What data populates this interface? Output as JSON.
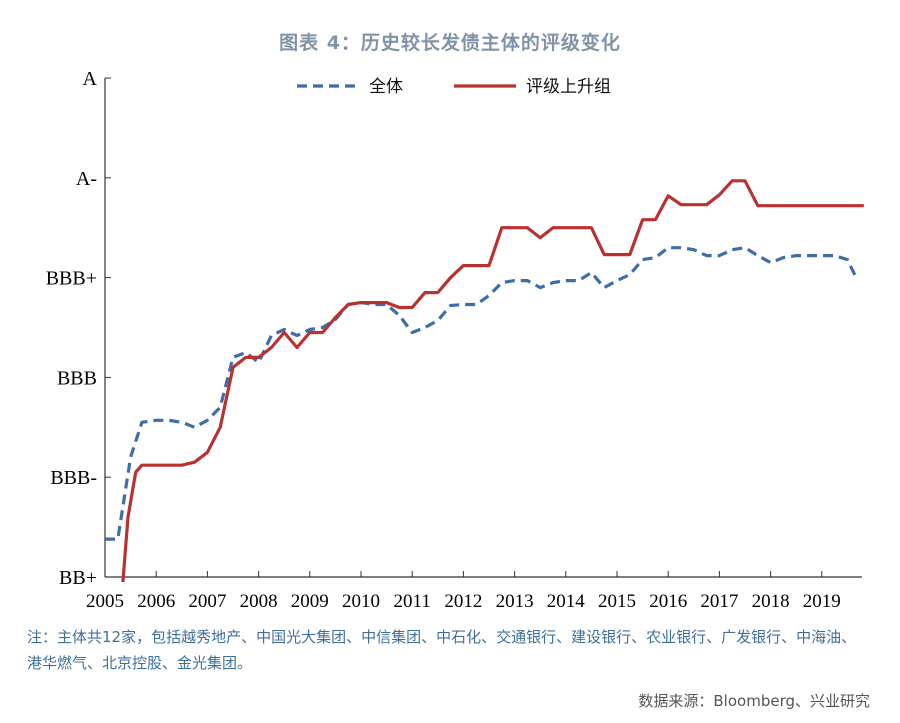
{
  "header": {
    "title": "图表 4：历史较长发债主体的评级变化"
  },
  "note": "注：主体共12家，包括越秀地产、中国光大集团、中信集团、中石化、交通银行、建设银行、农业银行、广发银行、中海油、港华燃气、北京控股、金光集团。",
  "source": "数据来源：Bloomberg、兴业研究",
  "chart_data": {
    "type": "line",
    "x_range": [
      2005,
      2019.82
    ],
    "x_ticks": [
      "2005",
      "2006",
      "2007",
      "2008",
      "2009",
      "2010",
      "2011",
      "2012",
      "2013",
      "2014",
      "2015",
      "2016",
      "2017",
      "2018",
      "2019"
    ],
    "y_ticks": [
      "BB+",
      "BBB-",
      "BBB",
      "BBB+",
      "A-",
      "A"
    ],
    "y_range": [
      0,
      5
    ],
    "legend_position": "top-center",
    "series": [
      {
        "name": "全体",
        "color": "#3d6eaa",
        "dash": "dashed",
        "points": [
          [
            2005.0,
            0.38
          ],
          [
            2005.25,
            0.38
          ],
          [
            2005.5,
            1.2
          ],
          [
            2005.72,
            1.55
          ],
          [
            2006.0,
            1.57
          ],
          [
            2006.25,
            1.57
          ],
          [
            2006.5,
            1.55
          ],
          [
            2006.75,
            1.5
          ],
          [
            2007.0,
            1.57
          ],
          [
            2007.25,
            1.7
          ],
          [
            2007.5,
            2.2
          ],
          [
            2007.75,
            2.25
          ],
          [
            2008.0,
            2.15
          ],
          [
            2008.25,
            2.42
          ],
          [
            2008.5,
            2.48
          ],
          [
            2008.75,
            2.42
          ],
          [
            2009.0,
            2.48
          ],
          [
            2009.25,
            2.5
          ],
          [
            2009.5,
            2.58
          ],
          [
            2009.75,
            2.73
          ],
          [
            2010.0,
            2.75
          ],
          [
            2010.25,
            2.73
          ],
          [
            2010.5,
            2.73
          ],
          [
            2010.75,
            2.62
          ],
          [
            2011.0,
            2.45
          ],
          [
            2011.25,
            2.5
          ],
          [
            2011.5,
            2.57
          ],
          [
            2011.75,
            2.72
          ],
          [
            2012.0,
            2.73
          ],
          [
            2012.25,
            2.73
          ],
          [
            2012.5,
            2.82
          ],
          [
            2012.75,
            2.95
          ],
          [
            2013.0,
            2.97
          ],
          [
            2013.25,
            2.97
          ],
          [
            2013.5,
            2.9
          ],
          [
            2013.75,
            2.95
          ],
          [
            2014.0,
            2.97
          ],
          [
            2014.25,
            2.97
          ],
          [
            2014.5,
            3.05
          ],
          [
            2014.75,
            2.9
          ],
          [
            2015.0,
            2.97
          ],
          [
            2015.25,
            3.03
          ],
          [
            2015.5,
            3.18
          ],
          [
            2015.75,
            3.2
          ],
          [
            2016.0,
            3.3
          ],
          [
            2016.25,
            3.3
          ],
          [
            2016.5,
            3.28
          ],
          [
            2016.75,
            3.22
          ],
          [
            2017.0,
            3.22
          ],
          [
            2017.25,
            3.28
          ],
          [
            2017.5,
            3.3
          ],
          [
            2017.75,
            3.22
          ],
          [
            2018.0,
            3.15
          ],
          [
            2018.25,
            3.2
          ],
          [
            2018.5,
            3.22
          ],
          [
            2018.75,
            3.22
          ],
          [
            2019.0,
            3.22
          ],
          [
            2019.25,
            3.22
          ],
          [
            2019.5,
            3.18
          ],
          [
            2019.65,
            3.02
          ]
        ]
      },
      {
        "name": "评级上升组",
        "color": "#b83232",
        "dash": "solid",
        "points": [
          [
            2005.35,
            -0.05
          ],
          [
            2005.45,
            0.6
          ],
          [
            2005.6,
            1.05
          ],
          [
            2005.72,
            1.12
          ],
          [
            2006.0,
            1.12
          ],
          [
            2006.25,
            1.12
          ],
          [
            2006.5,
            1.12
          ],
          [
            2006.75,
            1.15
          ],
          [
            2007.0,
            1.25
          ],
          [
            2007.25,
            1.5
          ],
          [
            2007.5,
            2.1
          ],
          [
            2007.75,
            2.2
          ],
          [
            2008.0,
            2.2
          ],
          [
            2008.25,
            2.3
          ],
          [
            2008.5,
            2.45
          ],
          [
            2008.75,
            2.3
          ],
          [
            2009.0,
            2.45
          ],
          [
            2009.25,
            2.45
          ],
          [
            2009.5,
            2.6
          ],
          [
            2009.75,
            2.73
          ],
          [
            2010.0,
            2.75
          ],
          [
            2010.25,
            2.75
          ],
          [
            2010.5,
            2.75
          ],
          [
            2010.75,
            2.7
          ],
          [
            2011.0,
            2.7
          ],
          [
            2011.25,
            2.85
          ],
          [
            2011.5,
            2.85
          ],
          [
            2011.75,
            3.0
          ],
          [
            2012.0,
            3.12
          ],
          [
            2012.25,
            3.12
          ],
          [
            2012.5,
            3.12
          ],
          [
            2012.75,
            3.5
          ],
          [
            2013.0,
            3.5
          ],
          [
            2013.25,
            3.5
          ],
          [
            2013.5,
            3.4
          ],
          [
            2013.75,
            3.5
          ],
          [
            2014.0,
            3.5
          ],
          [
            2014.25,
            3.5
          ],
          [
            2014.5,
            3.5
          ],
          [
            2014.75,
            3.23
          ],
          [
            2015.0,
            3.23
          ],
          [
            2015.25,
            3.23
          ],
          [
            2015.5,
            3.58
          ],
          [
            2015.75,
            3.58
          ],
          [
            2016.0,
            3.82
          ],
          [
            2016.25,
            3.73
          ],
          [
            2016.5,
            3.73
          ],
          [
            2016.75,
            3.73
          ],
          [
            2017.0,
            3.83
          ],
          [
            2017.25,
            3.97
          ],
          [
            2017.5,
            3.97
          ],
          [
            2017.75,
            3.72
          ],
          [
            2018.0,
            3.72
          ],
          [
            2018.25,
            3.72
          ],
          [
            2018.5,
            3.72
          ],
          [
            2018.75,
            3.72
          ],
          [
            2019.0,
            3.72
          ],
          [
            2019.25,
            3.72
          ],
          [
            2019.5,
            3.72
          ],
          [
            2019.82,
            3.72
          ]
        ]
      }
    ]
  }
}
